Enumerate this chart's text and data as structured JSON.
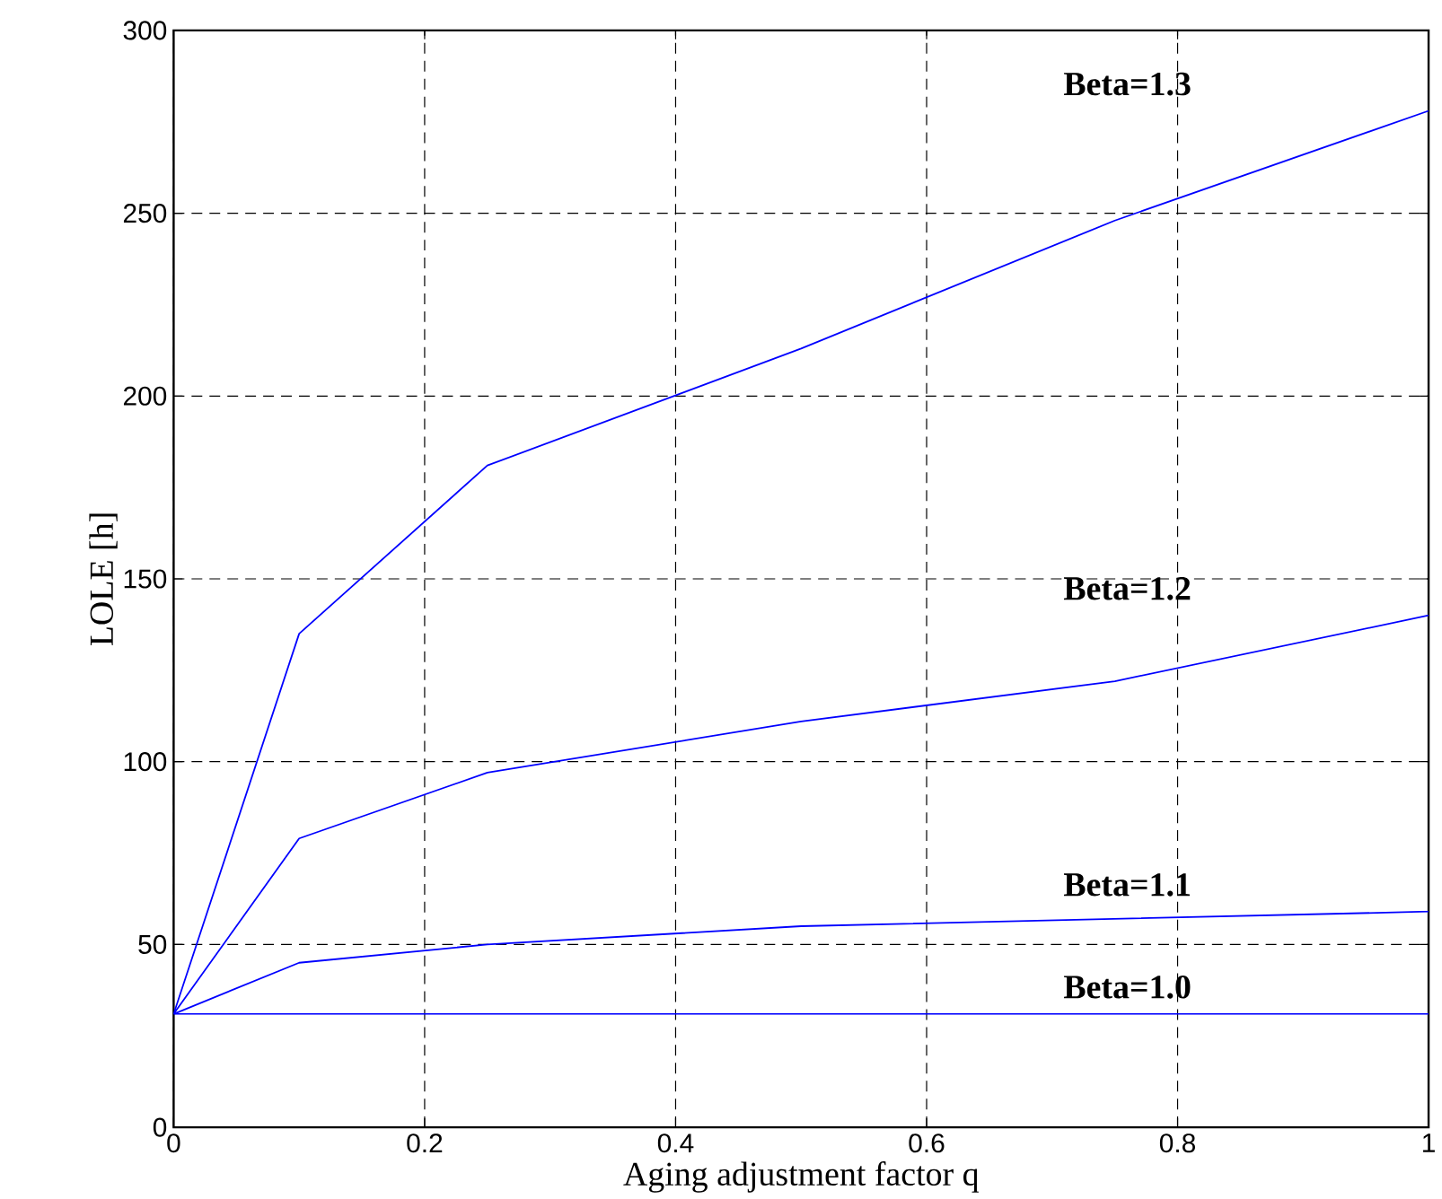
{
  "chart_data": {
    "type": "line",
    "xlabel": "Aging adjustment factor q",
    "ylabel": "LOLE [h]",
    "xlim": [
      0,
      1
    ],
    "ylim": [
      0,
      300
    ],
    "xticks": [
      0,
      0.2,
      0.4,
      0.6,
      0.8,
      1
    ],
    "yticks": [
      0,
      50,
      100,
      150,
      200,
      250,
      300
    ],
    "grid": true,
    "line_style": "solid",
    "marker": "none",
    "series": [
      {
        "name": "Beta=1.3",
        "color": "#0000ff",
        "x": [
          0,
          0.1,
          0.25,
          0.5,
          0.75,
          1
        ],
        "values": [
          31,
          135,
          181,
          213,
          248,
          278
        ]
      },
      {
        "name": "Beta=1.2",
        "color": "#0000ff",
        "x": [
          0,
          0.1,
          0.25,
          0.5,
          0.75,
          1
        ],
        "values": [
          31,
          79,
          97,
          111,
          122,
          140
        ]
      },
      {
        "name": "Beta=1.1",
        "color": "#0000ff",
        "x": [
          0,
          0.1,
          0.25,
          0.5,
          0.75,
          1
        ],
        "values": [
          31,
          45,
          50,
          55,
          57,
          59
        ]
      },
      {
        "name": "Beta=1.0",
        "color": "#0000ff",
        "x": [
          0,
          1
        ],
        "values": [
          31,
          31
        ]
      }
    ]
  }
}
